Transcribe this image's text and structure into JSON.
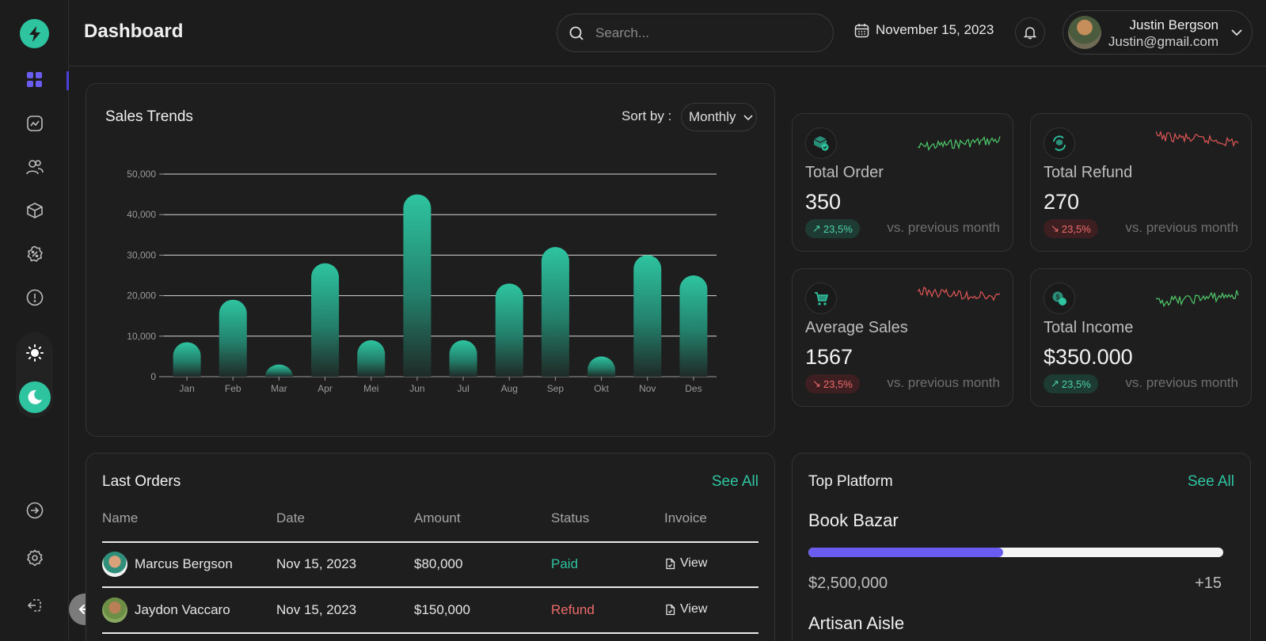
{
  "header": {
    "title": "Dashboard",
    "search_placeholder": "Search...",
    "date": "November 15, 2023",
    "user": {
      "name": "Justin Bergson",
      "email": "Justin@gmail.com"
    }
  },
  "sidebar": {
    "items": [
      "dashboard",
      "analytics",
      "customers",
      "products",
      "offers",
      "reports"
    ],
    "bottom": [
      "logout-arrow",
      "settings",
      "sign-out"
    ]
  },
  "sales": {
    "title": "Sales Trends",
    "sort_label": "Sort by :",
    "sort_value": "Monthly"
  },
  "chart_data": {
    "type": "bar",
    "title": "Sales Trends",
    "categories": [
      "Jan",
      "Feb",
      "Mar",
      "Apr",
      "Mei",
      "Jun",
      "Jul",
      "Aug",
      "Sep",
      "Okt",
      "Nov",
      "Des"
    ],
    "values": [
      8500,
      19000,
      3000,
      28000,
      9000,
      45000,
      9000,
      23000,
      32000,
      5000,
      30000,
      25000
    ],
    "ylim": [
      0,
      50000
    ],
    "yticks": [
      "0",
      "10,000",
      "20,000",
      "30,000",
      "40,000",
      "50,000"
    ],
    "grid": true,
    "color": "#2ec4a0"
  },
  "stats": [
    {
      "label": "Total Order",
      "value": "350",
      "change": "23,5%",
      "trend": "up",
      "compare": "vs. previous month",
      "icon": "box-check-icon"
    },
    {
      "label": "Total Refund",
      "value": "270",
      "change": "23,5%",
      "trend": "down",
      "compare": "vs. previous month",
      "icon": "refund-icon"
    },
    {
      "label": "Average Sales",
      "value": "1567",
      "change": "23,5%",
      "trend": "down",
      "compare": "vs. previous month",
      "icon": "cart-icon"
    },
    {
      "label": "Total Income",
      "value": "$350.000",
      "change": "23,5%",
      "trend": "up",
      "compare": "vs. previous month",
      "icon": "coin-icon"
    }
  ],
  "orders": {
    "title": "Last Orders",
    "see_all": "See All",
    "columns": [
      "Name",
      "Date",
      "Amount",
      "Status",
      "Invoice"
    ],
    "rows": [
      {
        "name": "Marcus Bergson",
        "date": "Nov 15, 2023",
        "amount": "$80,000",
        "status": "Paid",
        "invoice": "View"
      },
      {
        "name": "Jaydon Vaccaro",
        "date": "Nov 15, 2023",
        "amount": "$150,000",
        "status": "Refund",
        "invoice": "View"
      }
    ]
  },
  "platform": {
    "title": "Top Platform",
    "see_all": "See All",
    "items": [
      {
        "name": "Book Bazar",
        "amount": "$2,500,000",
        "delta": "+15",
        "progress": 0.47
      },
      {
        "name": "Artisan Aisle"
      }
    ]
  },
  "colors": {
    "accent": "#2ec4a0",
    "purple": "#6a5cf0",
    "up": "#4ed0a8",
    "down": "#ef6b6b"
  }
}
